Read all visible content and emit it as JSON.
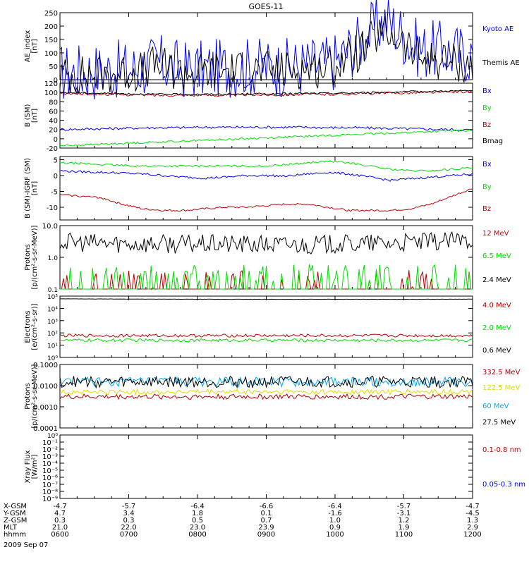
{
  "title": "GOES-11",
  "date_label": "2009 Sep 07",
  "colors": {
    "black": "#000000",
    "blue": "#0000ff",
    "red": "#c00000",
    "green": "#00dd00",
    "yellow": "#ffff00",
    "cyan": "#00aaee",
    "darkred": "#aa0000"
  },
  "chart_data": [
    {
      "type": "line",
      "id": "ae",
      "ylabel": "AE_index\n[nT]",
      "ylim": [
        0,
        250
      ],
      "yticks": [
        0,
        50,
        100,
        150,
        200,
        250
      ],
      "tick_labels": [
        "0",
        "50",
        "100",
        "150",
        "200",
        "250"
      ],
      "series": [
        {
          "name": "Kyoto AE",
          "color": "#0000ff",
          "y": [
            25,
            28,
            30,
            33,
            35,
            38,
            40,
            45,
            65,
            50,
            40,
            38,
            40,
            42,
            45,
            48,
            50,
            48,
            45,
            48,
            52,
            55,
            60,
            75,
            120,
            150,
            200,
            225,
            180,
            130,
            110,
            115,
            105,
            100,
            95
          ],
          "noise": 9
        },
        {
          "name": "Themis AE",
          "color": "#000000",
          "y": [
            15,
            15,
            18,
            20,
            22,
            25,
            28,
            35,
            60,
            35,
            28,
            28,
            30,
            32,
            35,
            38,
            38,
            36,
            34,
            38,
            40,
            42,
            45,
            60,
            90,
            110,
            160,
            170,
            150,
            100,
            80,
            75,
            70,
            60,
            55
          ],
          "noise": 6
        }
      ]
    },
    {
      "type": "line",
      "id": "bsm",
      "ylabel": "B (SM)\n[nT]",
      "ylim": [
        -20,
        120
      ],
      "yticks": [
        -20,
        0,
        20,
        40,
        60,
        80,
        100,
        120
      ],
      "tick_labels": [
        "-20",
        "0",
        "20",
        "40",
        "60",
        "80",
        "100",
        "120"
      ],
      "series": [
        {
          "name": "Bx",
          "color": "#0000ff",
          "y": [
            20,
            21,
            22,
            23,
            24,
            24,
            25,
            25,
            25,
            25,
            25,
            24,
            24,
            23,
            22,
            21,
            20,
            19
          ],
          "noise": 0.4
        },
        {
          "name": "By",
          "color": "#00dd00",
          "y": [
            -15,
            -13,
            -11,
            -9,
            -7,
            -5,
            -3,
            -1,
            1,
            3,
            5,
            7,
            9,
            11,
            13,
            15,
            17,
            18
          ],
          "noise": 0.3
        },
        {
          "name": "Bz",
          "color": "#c00000",
          "y": [
            98,
            97,
            96,
            95,
            94,
            94,
            94,
            94,
            95,
            95,
            96,
            96,
            97,
            98,
            99,
            100,
            101,
            102
          ],
          "noise": 0.4
        },
        {
          "name": "Bmag",
          "color": "#000000",
          "y": [
            100,
            99,
            98,
            97,
            96,
            96,
            96,
            96,
            97,
            97,
            98,
            98,
            99,
            100,
            101,
            102,
            103,
            104
          ],
          "noise": 0.3
        }
      ]
    },
    {
      "type": "line",
      "id": "bsmigrf",
      "ylabel": "B (SM)-IGRF (SM)\n[nT]",
      "ylim": [
        -14,
        6
      ],
      "yticks": [
        -10,
        -5,
        0,
        5
      ],
      "tick_labels": [
        "-10",
        "-5",
        "0",
        "5"
      ],
      "series": [
        {
          "name": "Bx",
          "color": "#0000ff",
          "y": [
            1.5,
            1.2,
            1,
            0.8,
            0.5,
            0,
            -0.5,
            -0.8,
            -0.5,
            0,
            0,
            -0.2,
            0.5,
            1,
            0.5,
            -0.5,
            -1.5,
            -1,
            -0.5,
            0,
            0.5
          ],
          "noise": 0.35
        },
        {
          "name": "By",
          "color": "#00dd00",
          "y": [
            4,
            3.8,
            3.5,
            3.2,
            3,
            3,
            3,
            3,
            3,
            3,
            3,
            3.5,
            4,
            4.5,
            4,
            3,
            2,
            1.5,
            1.5,
            2,
            2.5
          ],
          "noise": 0.3
        },
        {
          "name": "Bz",
          "color": "#c00000",
          "y": [
            -6,
            -6.5,
            -7,
            -9,
            -10.5,
            -11,
            -11,
            -10.5,
            -10,
            -10,
            -9.5,
            -9,
            -9,
            -10,
            -11,
            -11,
            -11,
            -10.5,
            -9,
            -6.5,
            -4
          ],
          "noise": 0.3
        }
      ]
    },
    {
      "type": "line",
      "id": "protons1",
      "ylabel": "Protons\n[p/(cm²-s-sr-MeV)]",
      "log": true,
      "ylim": [
        0.1,
        10
      ],
      "yticks": [
        0.1,
        1,
        10
      ],
      "tick_labels": [
        "0.1",
        "1.0",
        "10.0"
      ],
      "series": [
        {
          "name": "12 MeV",
          "color": "#c00000",
          "y": [
            0.1,
            0.1,
            0.1,
            0.1,
            0.1,
            0.1,
            0.1,
            0.1,
            0.1,
            0.1,
            0.1
          ],
          "noise": 0,
          "spikes": 0.15
        },
        {
          "name": "6.5 MeV",
          "color": "#00dd00",
          "y": [
            0.15,
            0.15,
            0.15,
            0.15,
            0.15,
            0.15,
            0.15,
            0.15,
            0.15,
            0.15,
            0.15
          ],
          "noise": 0,
          "spikes": 0.3
        },
        {
          "name": "2.4 MeV",
          "color": "#000000",
          "y": [
            3,
            2.8,
            2.7,
            2.6,
            2.6,
            2.5,
            2.5,
            2.6,
            2.8,
            3,
            3.5
          ],
          "noise": 0.6
        }
      ]
    },
    {
      "type": "line",
      "id": "electrons",
      "ylabel": "Electrons\n[e/(cm²-s-sr)]",
      "log": true,
      "ylim": [
        1,
        100000
      ],
      "yticks": [
        1,
        10,
        100,
        1000,
        10000,
        100000
      ],
      "tick_labels": [
        "10⁰",
        "10¹",
        "10²",
        "10³",
        "10⁴",
        "10⁵"
      ],
      "series": [
        {
          "name": "4.0 MeV",
          "color": "#c00000",
          "y": [
            60,
            60,
            60,
            60,
            60,
            60,
            60,
            60,
            60
          ],
          "noise": 0.25
        },
        {
          "name": "2.0 MeV",
          "color": "#00dd00",
          "y": [
            25,
            25,
            25,
            25,
            25,
            25,
            25,
            25,
            25
          ],
          "noise": 0.25
        },
        {
          "name": "0.6 MeV",
          "color": "#000000",
          "y": [
            60000,
            58000,
            56000,
            55000,
            55000,
            55000,
            55000,
            55000,
            56000
          ],
          "noise": 0.02
        }
      ]
    },
    {
      "type": "line",
      "id": "protons2",
      "ylabel": "Protons\n[p/(cm²-s-sr-MeV)]",
      "log": true,
      "ylim": [
        0.0001,
        0.1
      ],
      "yticks": [
        0.0001,
        0.001,
        0.01,
        0.1
      ],
      "tick_labels": [
        "0.0001",
        "0.0010",
        "0.0100",
        "0.1000"
      ],
      "series": [
        {
          "name": "332.5 MeV",
          "color": "#aa0000",
          "y": [
            0.003,
            0.003,
            0.003,
            0.003,
            0.003,
            0.003,
            0.003,
            0.003
          ],
          "noise": 0.25
        },
        {
          "name": "122.5 MeV",
          "color": "#dddd00",
          "y": [
            0.005,
            0.005,
            0.005,
            0.005,
            0.005,
            0.005,
            0.005,
            0.005
          ],
          "noise": 0.25
        },
        {
          "name": "60 MeV",
          "color": "#00aaee",
          "y": [
            0.015,
            0.015,
            0.015,
            0.015,
            0.015,
            0.015,
            0.015,
            0.015
          ],
          "noise": 0.45
        },
        {
          "name": "27.5 MeV",
          "color": "#000000",
          "y": [
            0.015,
            0.015,
            0.015,
            0.015,
            0.015,
            0.015,
            0.015,
            0.015
          ],
          "noise": 0.55
        }
      ]
    },
    {
      "type": "line",
      "id": "xray",
      "ylabel": "Xray Flux\n[W/m²]",
      "log": true,
      "ylim": [
        1e-09,
        1
      ],
      "yticks": [
        1e-09,
        1e-08,
        1e-07,
        1e-06,
        1e-05,
        0.0001,
        0.001,
        0.01,
        0.1,
        1
      ],
      "tick_labels": [
        "10⁻⁹",
        "10⁻⁸",
        "10⁻⁷",
        "10⁻⁶",
        "10⁻⁵",
        "10⁻⁴",
        "10⁻³",
        "10⁻²",
        "10⁻¹",
        "10⁰"
      ],
      "series": [
        {
          "name": "0.1-0.8 nm",
          "color": "#c00000",
          "y": [],
          "noise": 0
        },
        {
          "name": "0.05-0.3 nm",
          "color": "#0000ff",
          "y": [],
          "noise": 0
        }
      ]
    }
  ],
  "ephemeris": {
    "row_labels": [
      "X-GSM",
      "Y-GSM",
      "Z-GSM",
      "MLT",
      "hhmm"
    ],
    "columns": [
      [
        "-4.7",
        "4.7",
        "0.3",
        "21.0",
        "0600"
      ],
      [
        "-5.7",
        "3.4",
        "0.3",
        "22.0",
        "0700"
      ],
      [
        "-6.4",
        "1.8",
        "0.5",
        "23.0",
        "0800"
      ],
      [
        "-6.6",
        "0.1",
        "0.7",
        "23.9",
        "0900"
      ],
      [
        "-6.4",
        "-1.6",
        "1.0",
        "0.9",
        "1000"
      ],
      [
        "-5.7",
        "-3.1",
        "1.2",
        "1.9",
        "1100"
      ],
      [
        "-4.7",
        "-4.5",
        "1.3",
        "2.9",
        "1200"
      ]
    ]
  }
}
